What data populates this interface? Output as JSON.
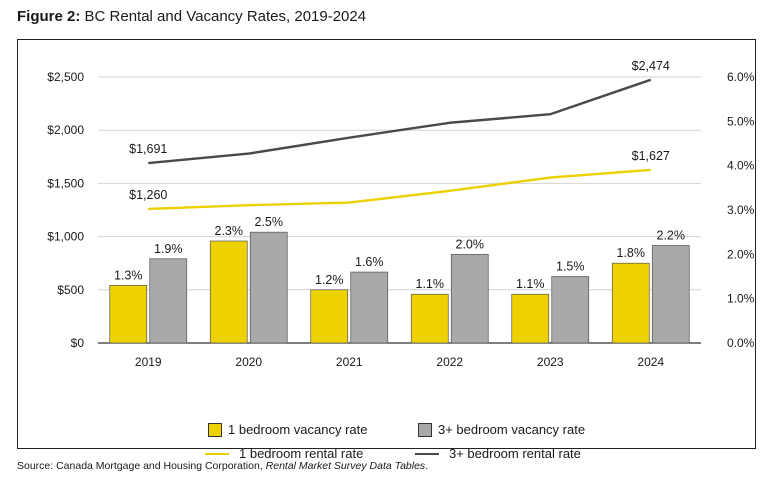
{
  "figure": {
    "lead": "Figure 2:",
    "title": "BC Rental and Vacancy Rates, 2019-2024"
  },
  "source": {
    "prefix": "Source: Canada Mortgage and Housing Corporation, ",
    "italic": "Rental Market Survey Data Tables",
    "suffix": "."
  },
  "colors": {
    "yellow": "#eed200",
    "gray": "#a9a9a9",
    "line_yellow": "#ecd000",
    "line_dark": "#4a4a4a"
  },
  "chart_data": {
    "type": "bar",
    "categories": [
      "2019",
      "2020",
      "2021",
      "2022",
      "2023",
      "2024"
    ],
    "y_left": {
      "range": [
        0,
        2500
      ],
      "ticks": [
        0,
        500,
        1000,
        1500,
        2000,
        2500
      ],
      "tick_labels": [
        "$0",
        "$500",
        "$1,000",
        "$1,500",
        "$2,000",
        "$2,500"
      ]
    },
    "y_right": {
      "range": [
        0,
        6
      ],
      "ticks": [
        0,
        1,
        2,
        3,
        4,
        5,
        6
      ],
      "tick_labels": [
        "0.0%",
        "1.0%",
        "2.0%",
        "3.0%",
        "4.0%",
        "5.0%",
        "6.0%"
      ]
    },
    "grid": "horizontal",
    "legend_position": "bottom",
    "series": [
      {
        "name": "1 bedroom vacancy rate",
        "kind": "bar",
        "axis": "right",
        "values": [
          1.3,
          2.3,
          1.2,
          1.1,
          1.1,
          1.8
        ],
        "labels": [
          "1.3%",
          "2.3%",
          "1.2%",
          "1.1%",
          "1.1%",
          "1.8%"
        ]
      },
      {
        "name": "3+ bedroom vacancy rate",
        "kind": "bar",
        "axis": "right",
        "values": [
          1.9,
          2.5,
          1.6,
          2.0,
          1.5,
          2.2
        ],
        "labels": [
          "1.9%",
          "2.5%",
          "1.6%",
          "2.0%",
          "1.5%",
          "2.2%"
        ]
      },
      {
        "name": "1 bedroom rental rate",
        "kind": "line",
        "axis": "left",
        "values": [
          1260,
          1295,
          1320,
          1430,
          1555,
          1627
        ],
        "labels": [
          "$1,260",
          "",
          "",
          "",
          "",
          "$1,627"
        ]
      },
      {
        "name": "3+ bedroom rental rate",
        "kind": "line",
        "axis": "left",
        "values": [
          1691,
          1780,
          1930,
          2070,
          2150,
          2474
        ],
        "labels": [
          "$1,691",
          "",
          "",
          "",
          "",
          "$2,474"
        ]
      }
    ]
  }
}
